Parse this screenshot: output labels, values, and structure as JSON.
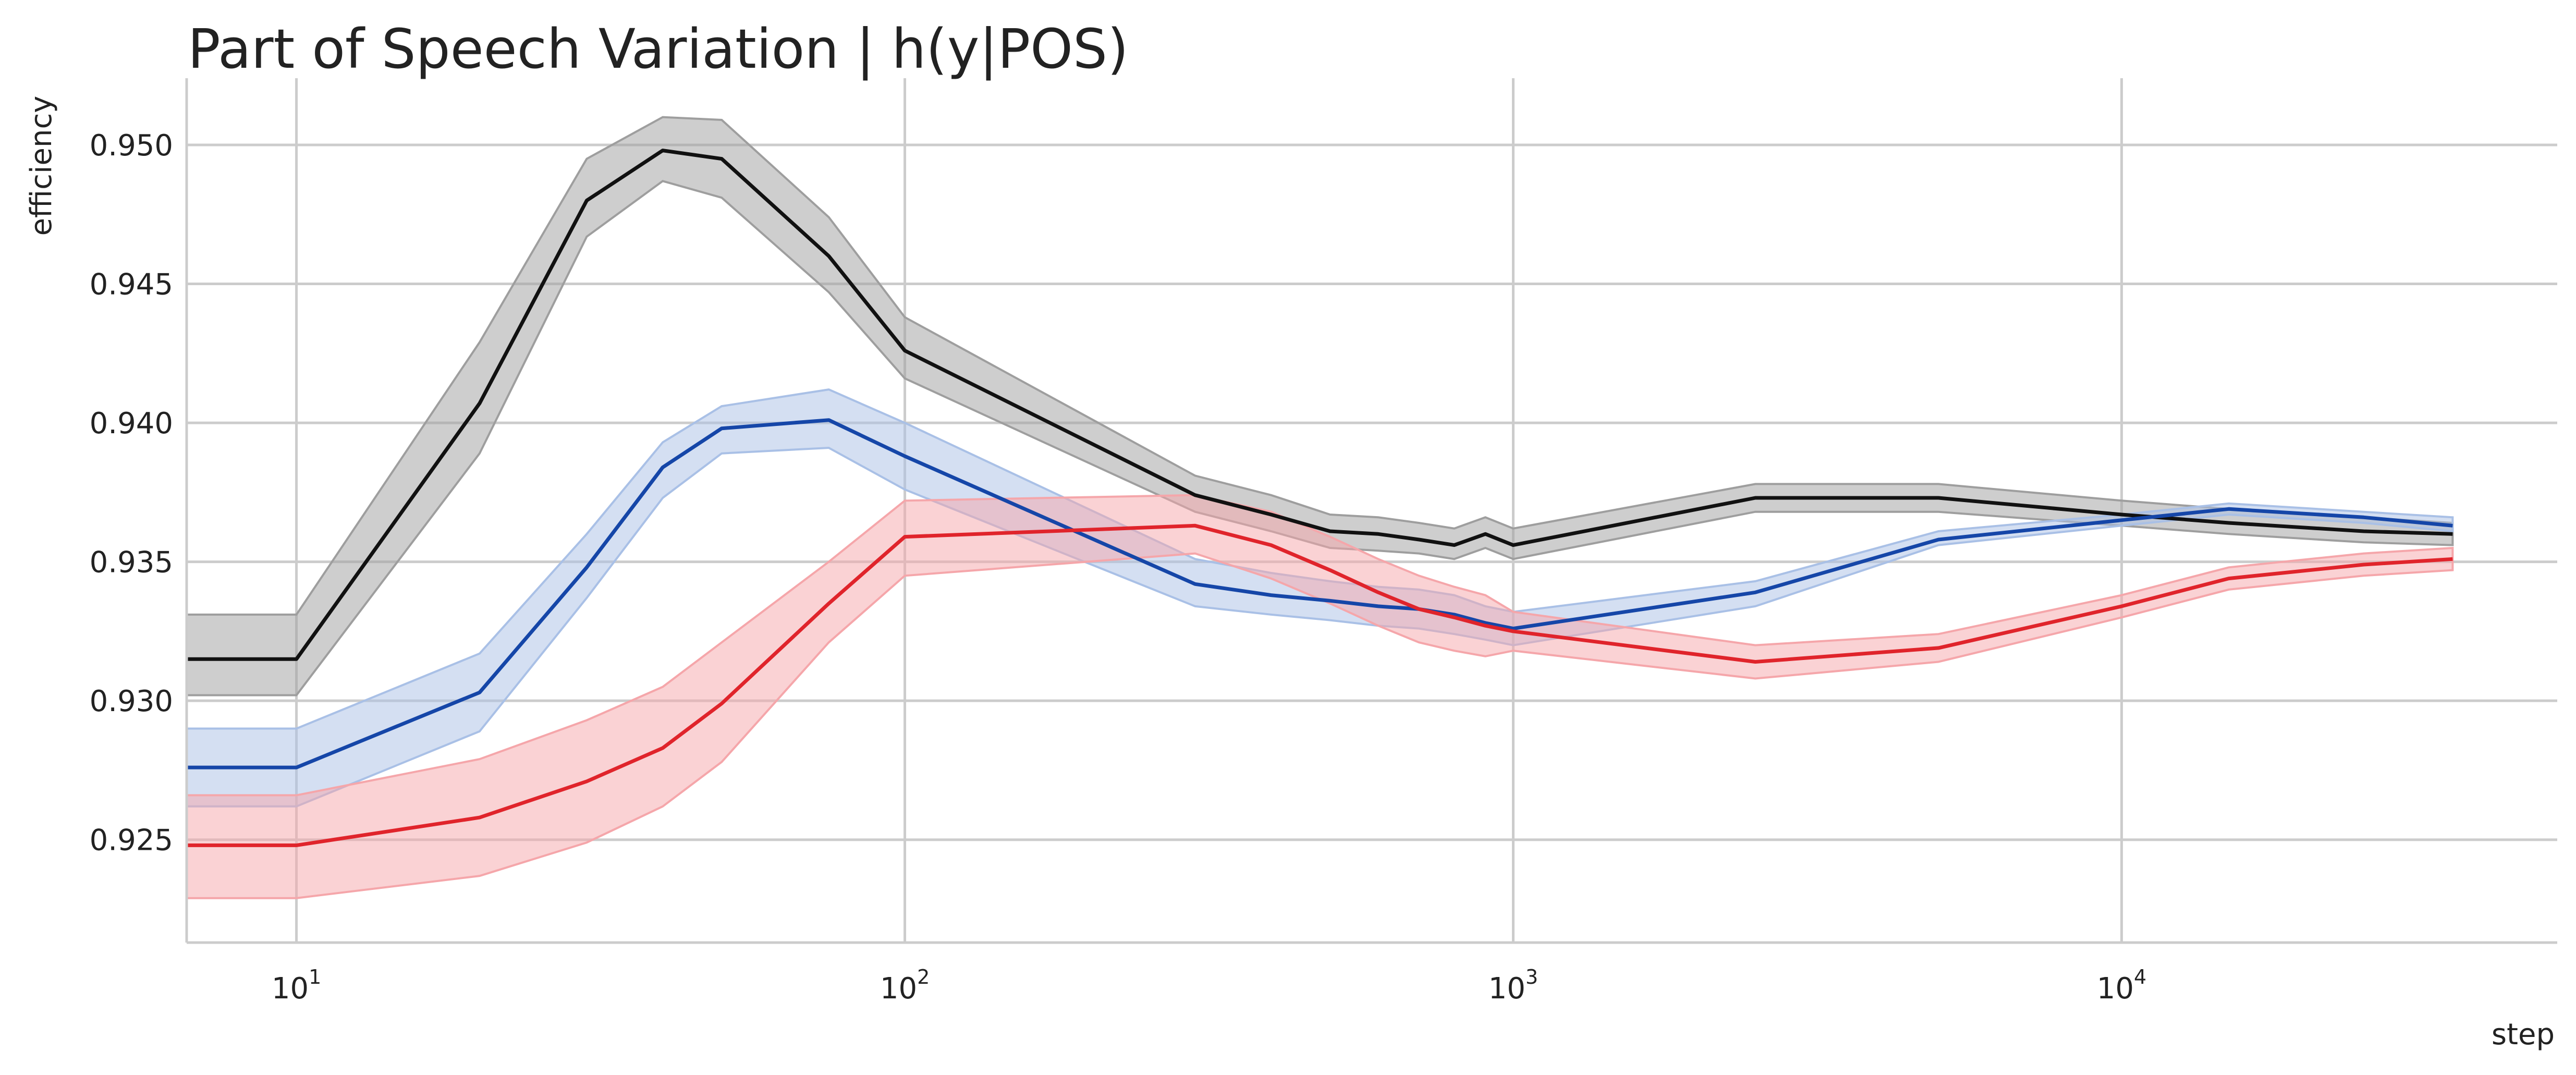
{
  "chart_data": {
    "type": "line",
    "title": "Part of Speech Variation | h(y|POS)",
    "xlabel": "step",
    "ylabel": "efficiency",
    "xscale": "log",
    "xlim": [
      6.6,
      52000
    ],
    "ylim": [
      0.9213,
      0.9524
    ],
    "xticks": [
      {
        "value": 10,
        "base": "10",
        "exp": "1"
      },
      {
        "value": 100,
        "base": "10",
        "exp": "2"
      },
      {
        "value": 1000,
        "base": "10",
        "exp": "3"
      },
      {
        "value": 10000,
        "base": "10",
        "exp": "4"
      }
    ],
    "yticks": [
      0.925,
      0.93,
      0.935,
      0.94,
      0.945,
      0.95
    ],
    "ytick_labels": [
      "0.925",
      "0.930",
      "0.935",
      "0.940",
      "0.945",
      "0.950"
    ],
    "grid": true,
    "legend": false,
    "x": [
      6.6,
      10,
      20,
      30,
      40,
      50,
      75,
      100,
      300,
      400,
      500,
      600,
      700,
      800,
      900,
      1000,
      2500,
      5000,
      10000,
      15000,
      25000,
      35000
    ],
    "series": [
      {
        "color": "#111111",
        "band_color": "#9e9e9e",
        "values": [
          0.9315,
          0.9315,
          0.9407,
          0.948,
          0.9498,
          0.9495,
          0.946,
          0.9426,
          0.9374,
          0.9367,
          0.9361,
          0.936,
          0.9358,
          0.9356,
          0.936,
          0.9356,
          0.9373,
          0.9373,
          0.9367,
          0.9364,
          0.9361,
          0.936
        ],
        "lower": [
          0.9302,
          0.9302,
          0.9389,
          0.9467,
          0.9487,
          0.9481,
          0.9447,
          0.9416,
          0.9368,
          0.9361,
          0.9355,
          0.9354,
          0.9353,
          0.9351,
          0.9355,
          0.9351,
          0.9368,
          0.9368,
          0.9363,
          0.936,
          0.9357,
          0.9356
        ],
        "upper": [
          0.9331,
          0.9331,
          0.9429,
          0.9495,
          0.951,
          0.9509,
          0.9474,
          0.9438,
          0.9381,
          0.9374,
          0.9367,
          0.9366,
          0.9364,
          0.9362,
          0.9366,
          0.9362,
          0.9378,
          0.9378,
          0.9372,
          0.9369,
          0.9366,
          0.9364
        ]
      },
      {
        "color": "#1546a8",
        "band_color": "#a9c0e6",
        "values": [
          0.9276,
          0.9276,
          0.9303,
          0.9348,
          0.9384,
          0.9398,
          0.9401,
          0.9388,
          0.9342,
          0.9338,
          0.9336,
          0.9334,
          0.9333,
          0.9331,
          0.9328,
          0.9326,
          0.9339,
          0.9358,
          0.9365,
          0.9369,
          0.9366,
          0.9363
        ],
        "lower": [
          0.9262,
          0.9262,
          0.9289,
          0.9337,
          0.9373,
          0.9389,
          0.9391,
          0.9376,
          0.9334,
          0.9331,
          0.9329,
          0.9327,
          0.9326,
          0.9324,
          0.9322,
          0.932,
          0.9334,
          0.9356,
          0.9363,
          0.9367,
          0.9364,
          0.9361
        ],
        "upper": [
          0.929,
          0.929,
          0.9317,
          0.936,
          0.9393,
          0.9406,
          0.9412,
          0.94,
          0.9351,
          0.9346,
          0.9343,
          0.9341,
          0.934,
          0.9338,
          0.9334,
          0.9332,
          0.9343,
          0.9361,
          0.9367,
          0.9371,
          0.9368,
          0.9366
        ]
      },
      {
        "color": "#e0242b",
        "band_color": "#f5a6aa",
        "values": [
          0.9248,
          0.9248,
          0.9258,
          0.9271,
          0.9283,
          0.9299,
          0.9335,
          0.9359,
          0.9363,
          0.9356,
          0.9347,
          0.9339,
          0.9333,
          0.933,
          0.9327,
          0.9325,
          0.9314,
          0.9319,
          0.9334,
          0.9344,
          0.9349,
          0.9351
        ],
        "lower": [
          0.9229,
          0.9229,
          0.9237,
          0.9249,
          0.9262,
          0.9278,
          0.9321,
          0.9345,
          0.9353,
          0.9344,
          0.9335,
          0.9327,
          0.9321,
          0.9318,
          0.9316,
          0.9318,
          0.9308,
          0.9314,
          0.933,
          0.934,
          0.9345,
          0.9347
        ],
        "upper": [
          0.9266,
          0.9266,
          0.9279,
          0.9293,
          0.9305,
          0.9321,
          0.935,
          0.9372,
          0.9374,
          0.9368,
          0.9359,
          0.9351,
          0.9345,
          0.9341,
          0.9338,
          0.9332,
          0.932,
          0.9324,
          0.9338,
          0.9348,
          0.9353,
          0.9355
        ]
      }
    ]
  }
}
